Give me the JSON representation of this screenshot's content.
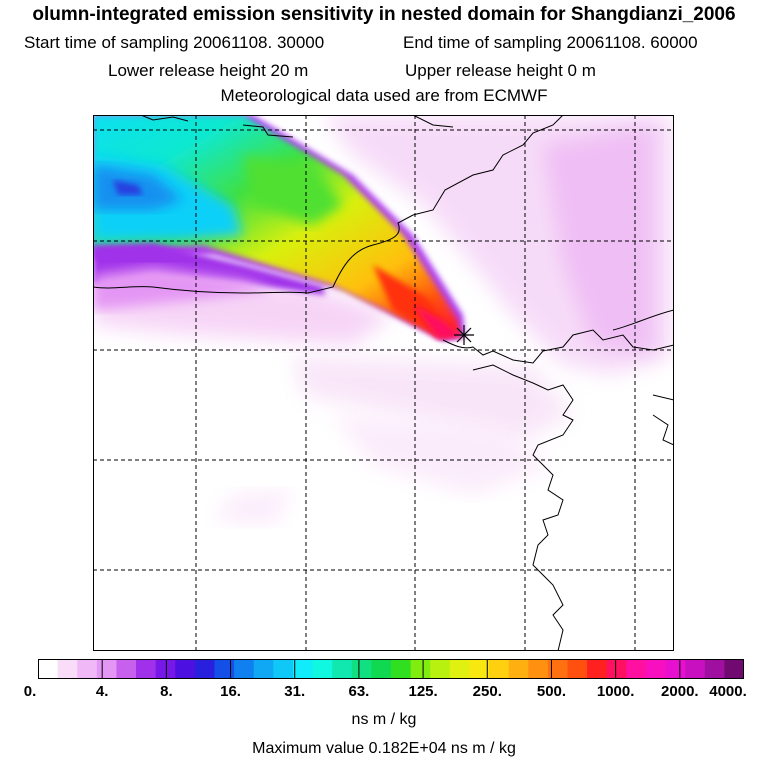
{
  "header": {
    "title": "olumn-integrated emission sensitivity in nested domain for Shangdianzi_2006",
    "start_time": "Start time of sampling 20061108. 30000",
    "end_time": "End time of sampling 20061108. 60000",
    "lower_height": "Lower release height   20 m",
    "upper_height": "Upper release height    0 m",
    "met_data": "Meteorological data used are from ECMWF"
  },
  "colorbar": {
    "labels": [
      "0.",
      "4.",
      "8.",
      "16.",
      "31.",
      "63.",
      "125.",
      "250.",
      "500.",
      "1000.",
      "2000.",
      "4000."
    ],
    "colors": [
      "#ffffff",
      "#f8dcf8",
      "#f0b8f6",
      "#e496f4",
      "#c860ee",
      "#a030ea",
      "#7818e8",
      "#4c10e0",
      "#2820dc",
      "#1450e8",
      "#1080f0",
      "#10a8f4",
      "#10c8f8",
      "#10ecfa",
      "#10f8e0",
      "#10e8b0",
      "#10e080",
      "#10d850",
      "#30e020",
      "#80ec10",
      "#b8f010",
      "#e0f010",
      "#f8e810",
      "#ffd010",
      "#ffb010",
      "#ff9010",
      "#ff7010",
      "#ff5010",
      "#ff2020",
      "#ff1060",
      "#ff10a0",
      "#f810c0",
      "#e810d0",
      "#c810c0",
      "#a010a0",
      "#700a70"
    ],
    "unit": "ns m / kg"
  },
  "footer": {
    "max_value": "Maximum value  0.182E+04 ns m / kg"
  },
  "map": {
    "receptor": "Shangdianzi",
    "receptor_marker": "star-marker-icon"
  }
}
